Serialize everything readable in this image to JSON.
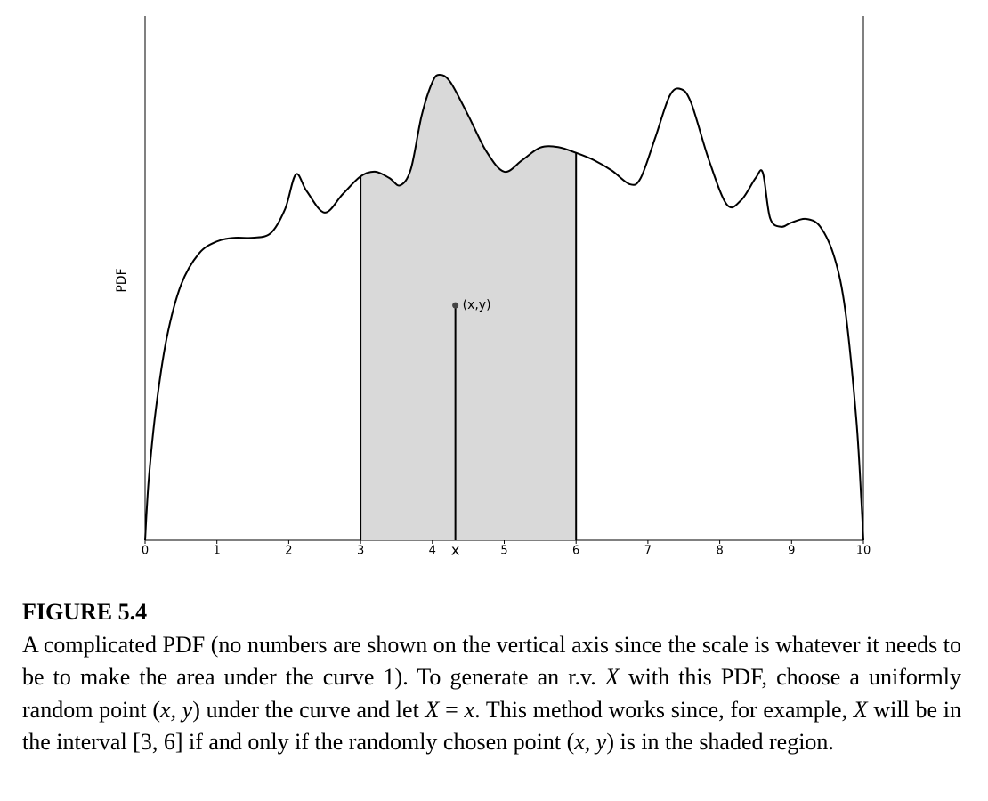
{
  "chart_data": {
    "type": "line",
    "y_label": "PDF",
    "x": [
      0,
      0.05,
      0.15,
      0.3,
      0.5,
      0.75,
      1.0,
      1.25,
      1.5,
      1.75,
      1.95,
      2.1,
      2.25,
      2.5,
      2.75,
      3.0,
      3.2,
      3.4,
      3.55,
      3.7,
      3.85,
      4.0,
      4.1,
      4.25,
      4.5,
      4.75,
      5.0,
      5.25,
      5.5,
      5.75,
      6.0,
      6.25,
      6.5,
      6.75,
      6.9,
      7.1,
      7.3,
      7.45,
      7.6,
      7.85,
      8.1,
      8.3,
      8.5,
      8.6,
      8.7,
      8.85,
      9.0,
      9.2,
      9.4,
      9.6,
      9.75,
      9.9,
      9.97,
      10
    ],
    "values": [
      0,
      11.4,
      25,
      38.5,
      48.7,
      54.7,
      57,
      57.7,
      57.7,
      58.6,
      63.2,
      69.8,
      66.6,
      62.5,
      66,
      69.4,
      70.3,
      69.1,
      67.7,
      70.8,
      81,
      87.4,
      88.8,
      87.4,
      81,
      74.2,
      70.3,
      72.5,
      74.9,
      75.0,
      73.9,
      72.5,
      70.5,
      67.9,
      69.1,
      76.7,
      84.7,
      86.1,
      83.5,
      72.5,
      64,
      64.9,
      69.1,
      70.1,
      61.5,
      59.8,
      60.6,
      61.3,
      59.8,
      53.8,
      43.6,
      23.3,
      8,
      0
    ],
    "color": "#000000",
    "shade": [
      3,
      6
    ],
    "shade_color": "#d9d9d9",
    "point": {
      "x": 4.32,
      "y": 44.8,
      "label": "(x,y)"
    },
    "xlim": [
      0,
      10
    ],
    "ylim": [
      0,
      100
    ],
    "xticks": [
      0,
      1,
      2,
      3,
      4,
      {
        "value": 4.32,
        "label": "x"
      },
      5,
      6,
      7,
      8,
      9,
      10
    ]
  },
  "caption": {
    "label": "FIGURE 5.4",
    "parts": [
      "A complicated PDF (no numbers are shown on the vertical axis since the scale is whatever it needs to be to make the area under the curve 1). To generate an r.v. ",
      "X",
      " with this PDF, choose a uniformly random point (",
      "x, y",
      ") under the curve and let ",
      "X",
      " = ",
      "x",
      ". This method works since, for example, ",
      "X",
      " will be in the interval [3, 6] if and only if the randomly chosen point (",
      "x, y",
      ") is in the shaded region."
    ]
  }
}
